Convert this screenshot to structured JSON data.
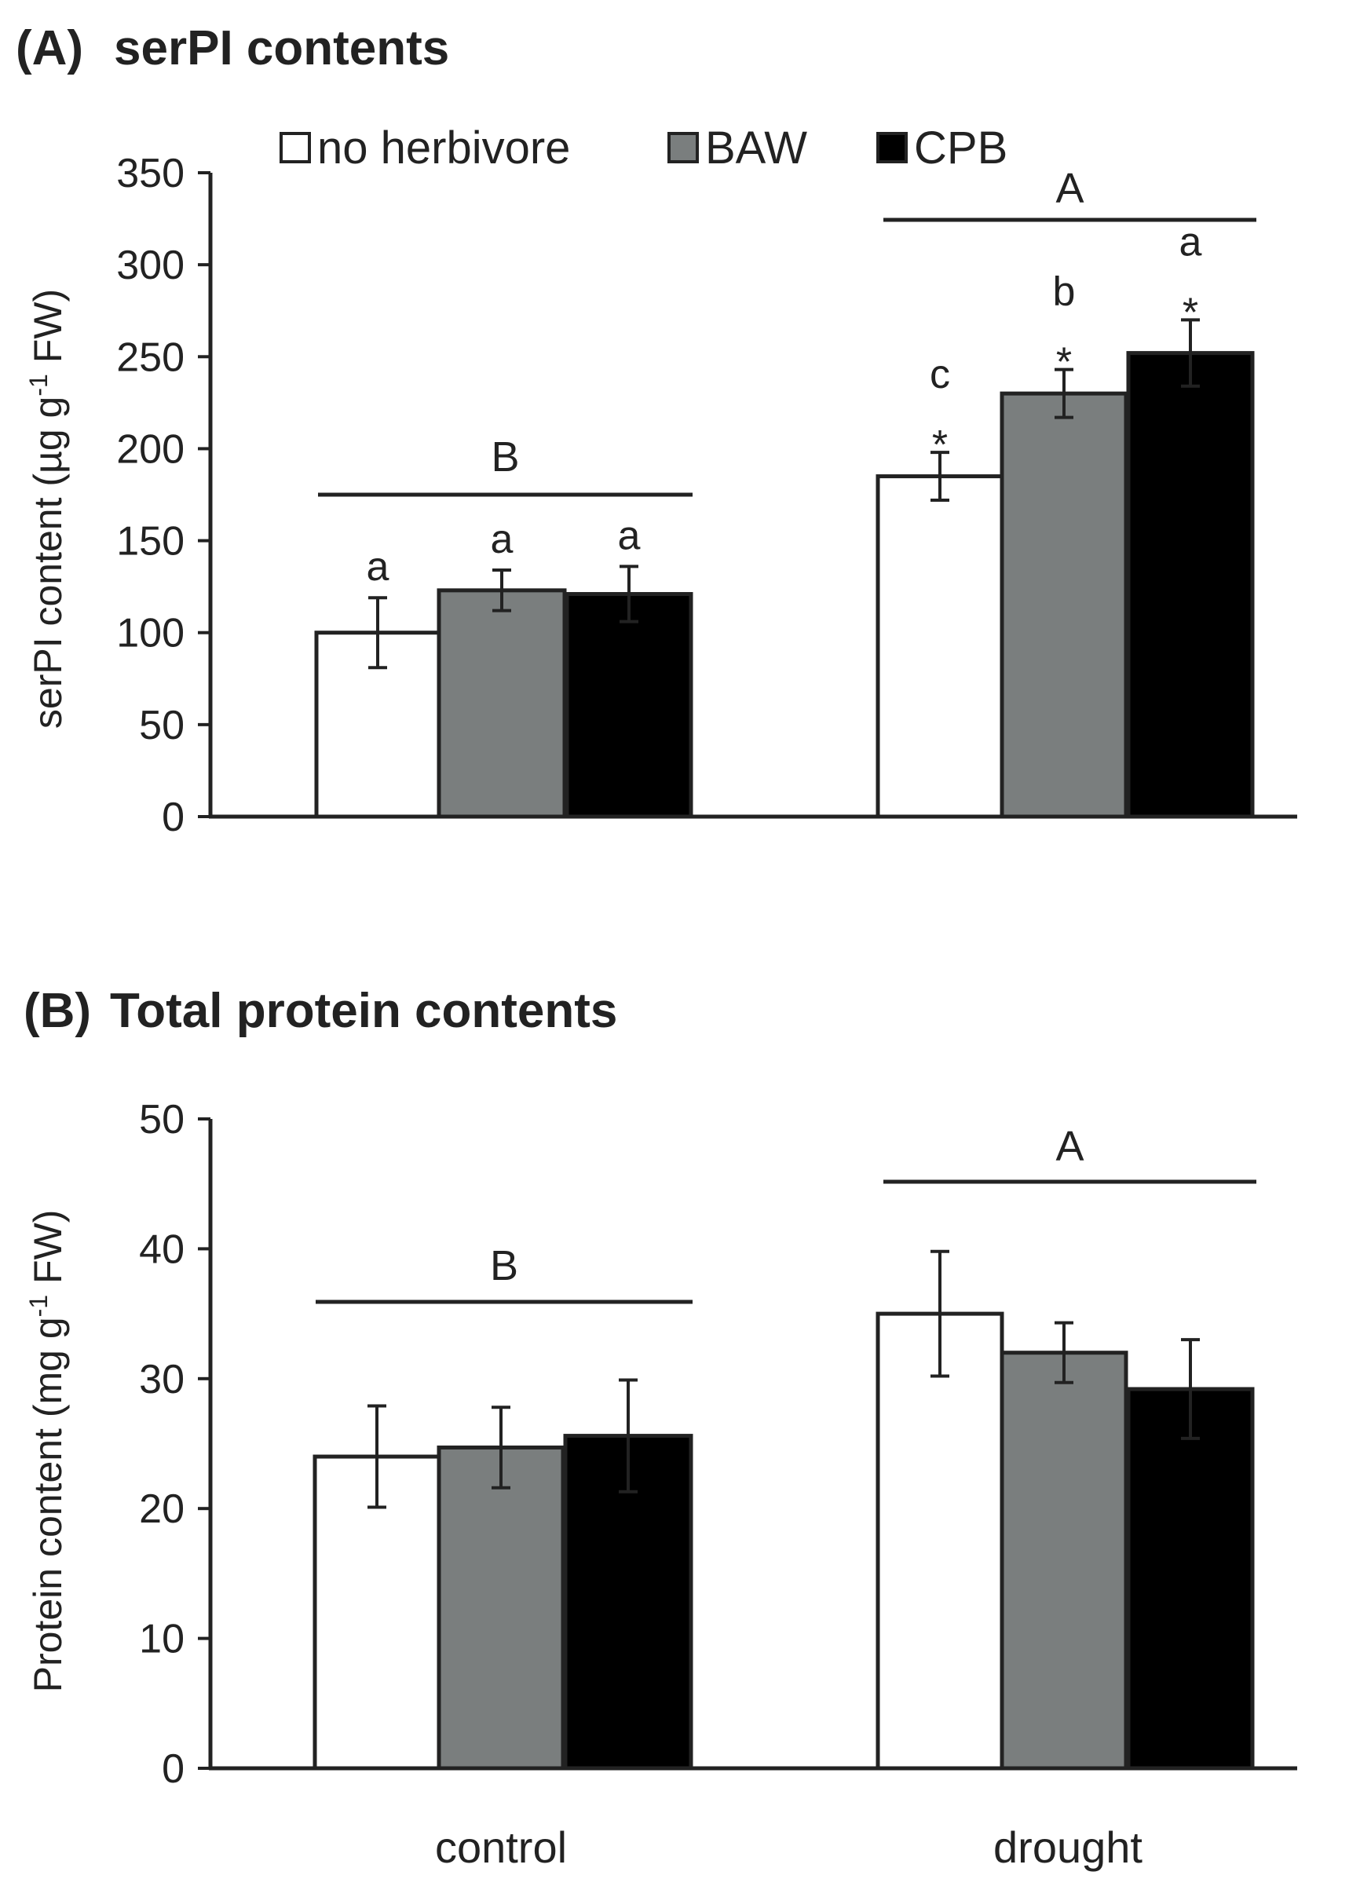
{
  "colors": {
    "no_herbivore": "#ffffff",
    "BAW": "#7a7e7e",
    "CPB": "#000000",
    "axis": "#222222"
  },
  "legend": [
    "no herbivore",
    "BAW",
    "CPB"
  ],
  "chart_data": [
    {
      "type": "bar",
      "panel": "(A)",
      "title": "serPI contents",
      "ylabel": "serPI content (µg g",
      "ylabel_sup": "-1",
      "ylabel_end": " FW)",
      "ylim": [
        0,
        350
      ],
      "yticks": [
        0,
        50,
        100,
        150,
        200,
        250,
        300,
        350
      ],
      "categories": [
        "control",
        "drought"
      ],
      "series": [
        {
          "name": "no herbivore",
          "values": [
            100,
            185
          ],
          "errors": [
            19,
            13
          ],
          "letters": [
            "a",
            "c"
          ],
          "stars": [
            "",
            "*"
          ]
        },
        {
          "name": "BAW",
          "values": [
            123,
            230
          ],
          "errors": [
            11,
            13
          ],
          "letters": [
            "a",
            "b"
          ],
          "stars": [
            "",
            "*"
          ]
        },
        {
          "name": "CPB",
          "values": [
            121,
            252
          ],
          "errors": [
            15,
            18
          ],
          "letters": [
            "a",
            "a"
          ],
          "stars": [
            "",
            "*"
          ]
        }
      ],
      "group_labels": [
        "B",
        "A"
      ]
    },
    {
      "type": "bar",
      "panel": "(B)",
      "title": "Total protein contents",
      "ylabel": "Protein content (mg g",
      "ylabel_sup": "-1",
      "ylabel_end": " FW)",
      "ylim": [
        0,
        50
      ],
      "yticks": [
        0,
        10,
        20,
        30,
        40,
        50
      ],
      "categories": [
        "control",
        "drought"
      ],
      "series": [
        {
          "name": "no herbivore",
          "values": [
            24,
            35
          ],
          "errors": [
            3.9,
            4.8
          ]
        },
        {
          "name": "BAW",
          "values": [
            24.7,
            32
          ],
          "errors": [
            3.1,
            2.3
          ]
        },
        {
          "name": "CPB",
          "values": [
            25.6,
            29.2
          ],
          "errors": [
            4.3,
            3.8
          ]
        }
      ],
      "group_labels": [
        "B",
        "A"
      ]
    }
  ]
}
